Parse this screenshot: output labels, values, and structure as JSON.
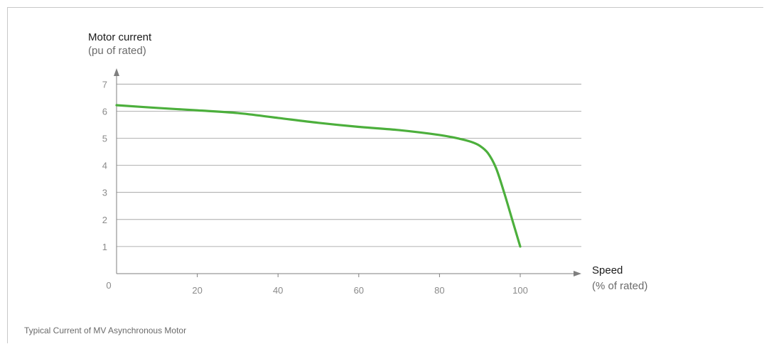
{
  "chart_data": {
    "type": "line",
    "caption": "Typical Current of MV Asynchronous Motor",
    "ylabel": "Motor current",
    "ylabel_unit": "(pu of rated)",
    "xlabel": "Speed",
    "xlabel_unit": "(% of rated)",
    "origin_label": "0",
    "x_ticks": [
      "20",
      "40",
      "60",
      "80",
      "100"
    ],
    "y_ticks": [
      "1",
      "2",
      "3",
      "4",
      "5",
      "6",
      "7"
    ],
    "xlim": [
      0,
      120
    ],
    "ylim": [
      0,
      8
    ],
    "grid": "horizontal",
    "series": [
      {
        "color": "#4caf3c",
        "x": [
          0,
          10,
          20,
          30,
          40,
          50,
          60,
          70,
          80,
          85,
          88,
          90,
          92,
          94,
          96,
          98,
          100
        ],
        "y": [
          6.22,
          6.12,
          6.03,
          5.93,
          5.75,
          5.57,
          5.42,
          5.3,
          5.12,
          4.98,
          4.86,
          4.72,
          4.45,
          3.9,
          3.0,
          2.0,
          1.0
        ]
      }
    ],
    "colors": {
      "axis": "#7f7f7f",
      "grid": "#9a9a9a",
      "tick_label": "#8a8a8a"
    }
  }
}
